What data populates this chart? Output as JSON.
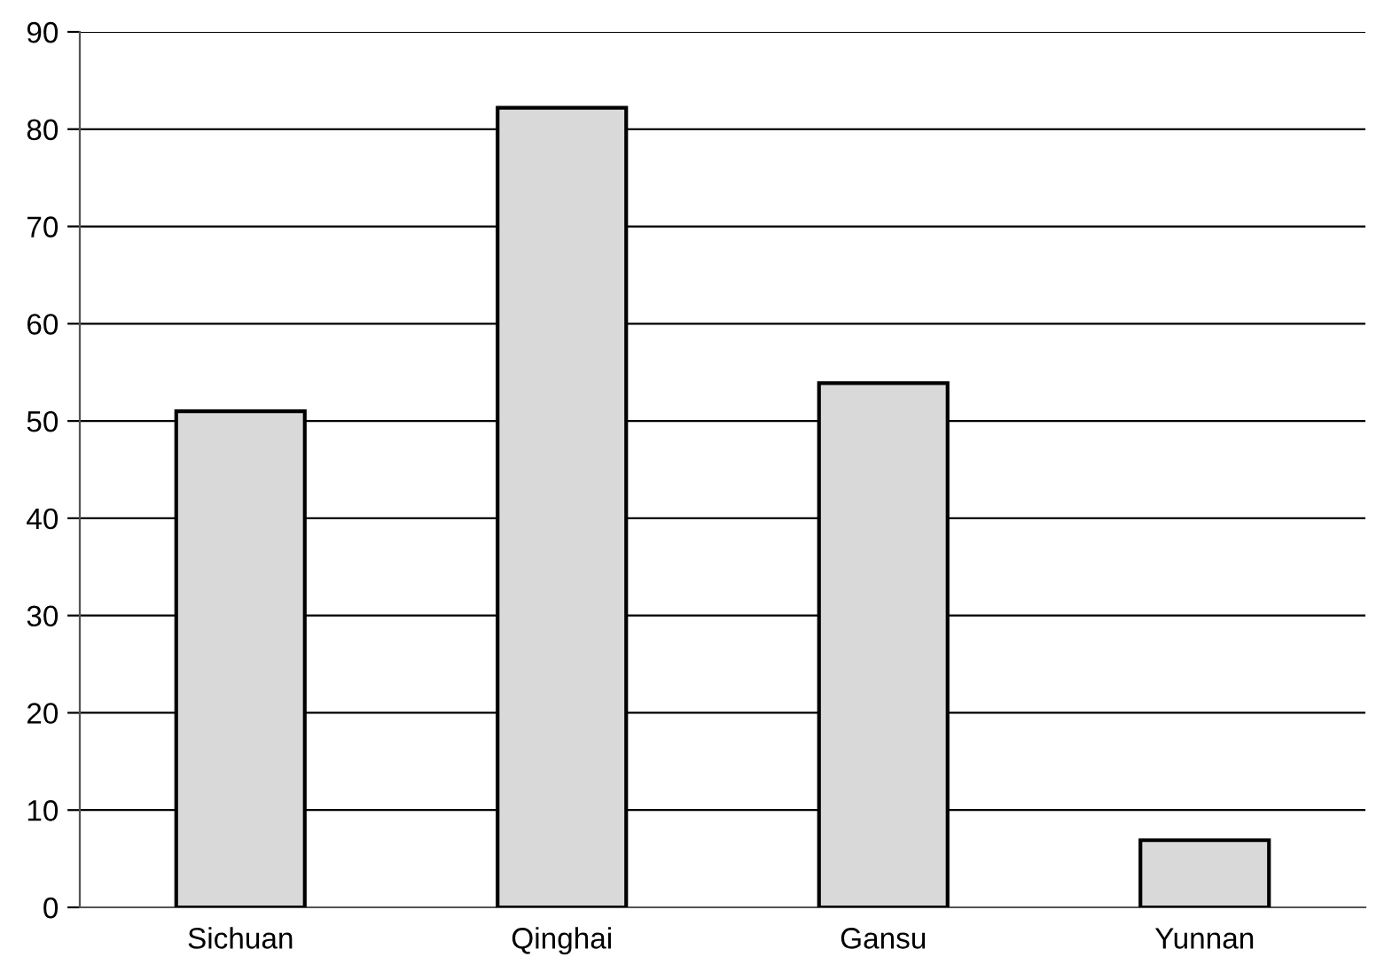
{
  "chart_data": {
    "type": "bar",
    "categories": [
      "Sichuan",
      "Qinghai",
      "Gansu",
      "Yunnan"
    ],
    "values": [
      51,
      82.2,
      53.9,
      6.9
    ],
    "color": "#d9d9d9",
    "ylim": [
      0,
      90
    ],
    "yticks": [
      0,
      10,
      20,
      30,
      40,
      50,
      60,
      70,
      80,
      90
    ],
    "grid": "y",
    "legend": false
  }
}
